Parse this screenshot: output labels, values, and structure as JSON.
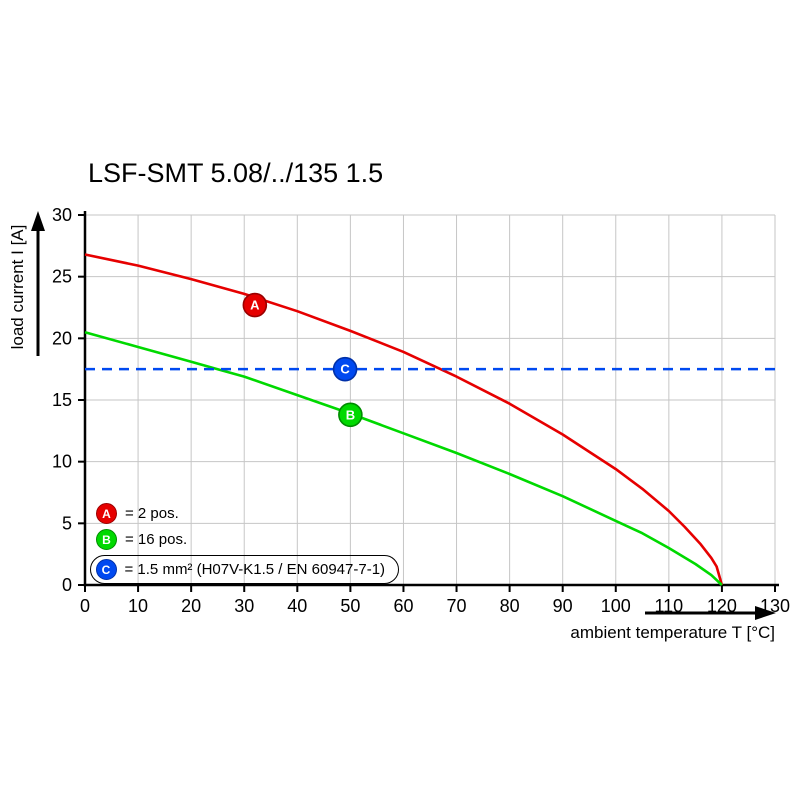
{
  "chart_data": {
    "type": "line",
    "title": "LSF-SMT 5.08/../135 1.5",
    "xlabel": "ambient temperature T [°C]",
    "ylabel": "load current I [A]",
    "xlim": [
      0,
      130
    ],
    "ylim": [
      0,
      30
    ],
    "xticks": [
      0,
      10,
      20,
      30,
      40,
      50,
      60,
      70,
      80,
      90,
      100,
      110,
      120,
      130
    ],
    "yticks": [
      0,
      5,
      10,
      15,
      20,
      25,
      30
    ],
    "grid": true,
    "grid_color": "#c6c6c6",
    "axis_color": "#000000",
    "series": [
      {
        "name": "A",
        "description": "2 pos.",
        "color": "#e60000",
        "marker_stroke": "#9a0000",
        "marker_at": [
          32,
          22.7
        ],
        "points": [
          [
            0,
            26.8
          ],
          [
            10,
            25.9
          ],
          [
            20,
            24.8
          ],
          [
            30,
            23.6
          ],
          [
            40,
            22.2
          ],
          [
            50,
            20.6
          ],
          [
            60,
            18.9
          ],
          [
            70,
            16.9
          ],
          [
            80,
            14.7
          ],
          [
            90,
            12.2
          ],
          [
            100,
            9.4
          ],
          [
            105,
            7.8
          ],
          [
            110,
            6.0
          ],
          [
            113,
            4.7
          ],
          [
            116,
            3.3
          ],
          [
            118,
            2.2
          ],
          [
            119,
            1.5
          ],
          [
            120,
            0
          ]
        ]
      },
      {
        "name": "B",
        "description": "16 pos.",
        "color": "#00d900",
        "marker_stroke": "#008c00",
        "marker_at": [
          50,
          13.8
        ],
        "points": [
          [
            0,
            20.5
          ],
          [
            10,
            19.3
          ],
          [
            20,
            18.1
          ],
          [
            25,
            17.5
          ],
          [
            30,
            16.9
          ],
          [
            40,
            15.4
          ],
          [
            50,
            13.9
          ],
          [
            60,
            12.3
          ],
          [
            70,
            10.7
          ],
          [
            80,
            9.0
          ],
          [
            90,
            7.2
          ],
          [
            100,
            5.2
          ],
          [
            105,
            4.2
          ],
          [
            110,
            3.0
          ],
          [
            115,
            1.7
          ],
          [
            118,
            0.8
          ],
          [
            120,
            0
          ]
        ]
      },
      {
        "name": "C",
        "description": "1.5 mm² (H07V-K1.5 / EN 60947-7-1)",
        "color": "#0049f0",
        "marker_stroke": "#0030a8",
        "style": "dashed",
        "const_y": 17.5,
        "marker_at": [
          49,
          17.5
        ]
      }
    ]
  },
  "legend": {
    "items": [
      {
        "badge": "A",
        "color": "#e60000",
        "border": "#9a0000",
        "text": "= 2 pos.",
        "boxed": false
      },
      {
        "badge": "B",
        "color": "#00d900",
        "border": "#008c00",
        "text": "= 16 pos.",
        "boxed": false
      },
      {
        "badge": "C",
        "color": "#0049f0",
        "border": "#0030a8",
        "text": "= 1.5 mm² (H07V-K1.5 / EN 60947-7-1)",
        "boxed": true
      }
    ]
  }
}
